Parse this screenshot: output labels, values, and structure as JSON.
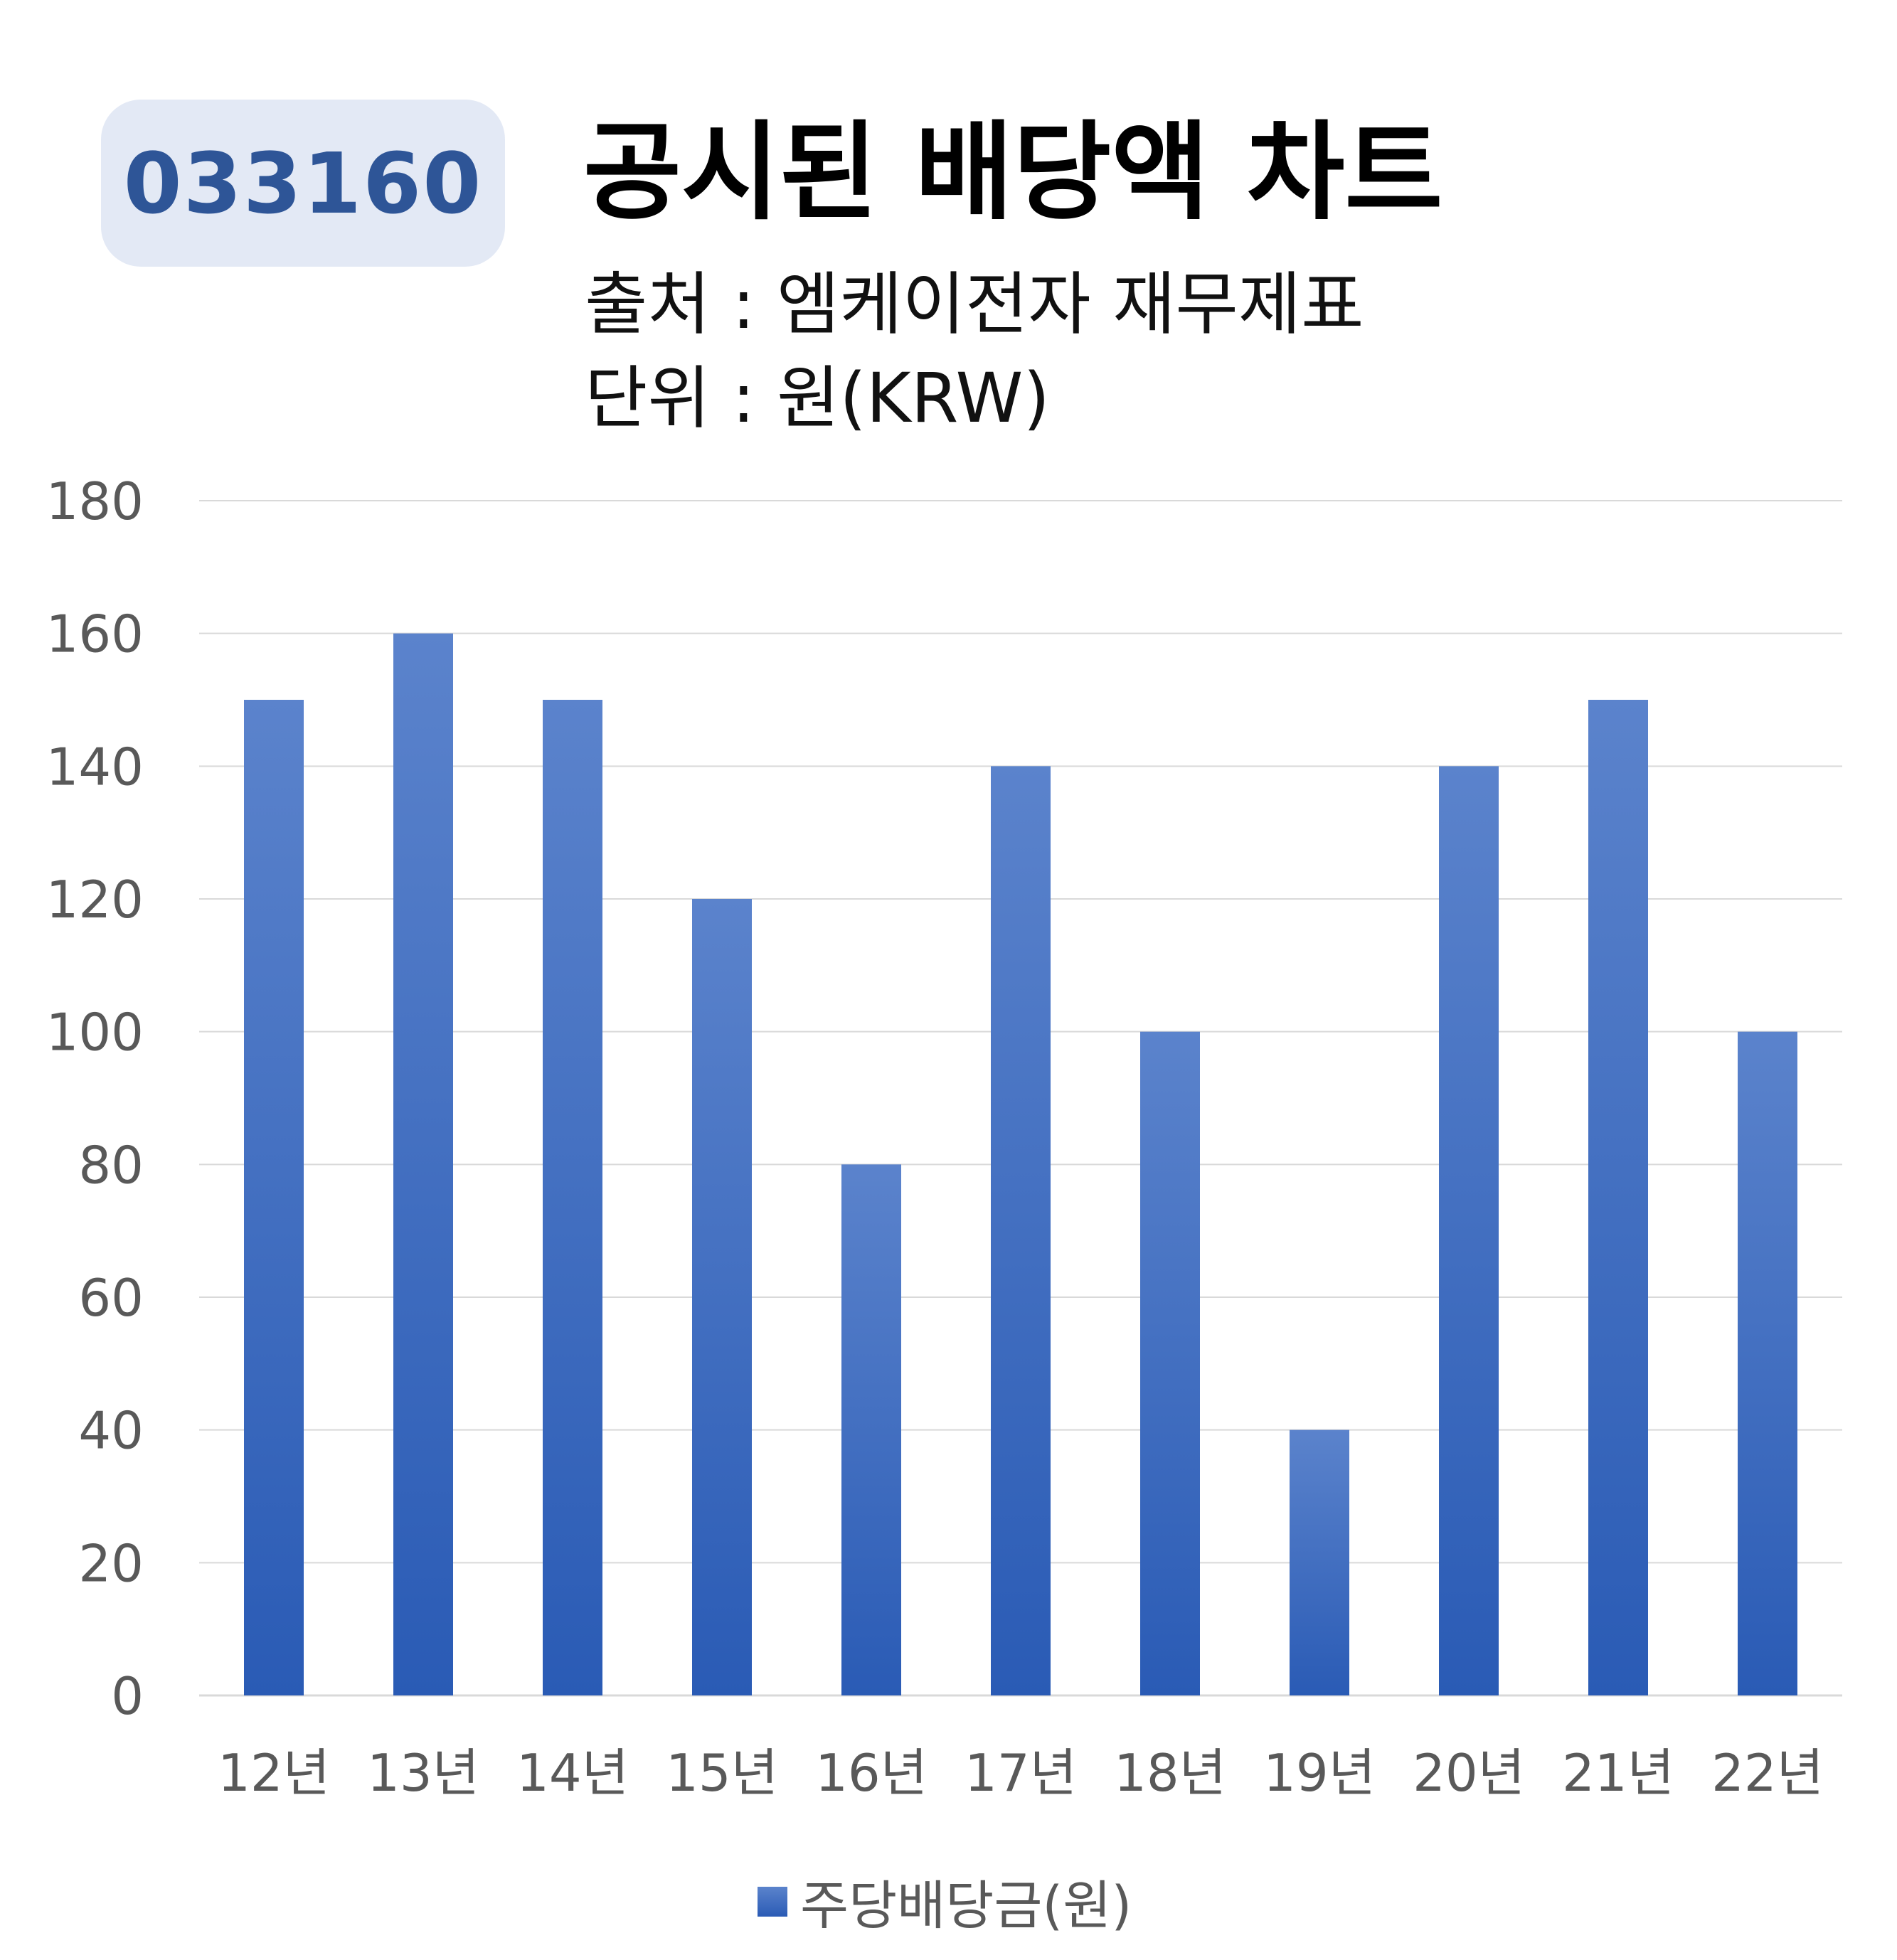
{
  "header": {
    "ticker": "033160",
    "title": "공시된 배당액 차트",
    "source": "출처 : 엠케이전자 재무제표",
    "unit": "단위 : 원(KRW)"
  },
  "colors": {
    "bar_top": "#5b83cc",
    "bar_bottom": "#2a5bb5",
    "gridline": "#d9d9d9",
    "tick_text": "#595959",
    "badge_bg": "#e3e9f5",
    "badge_text": "#2e5597"
  },
  "chart_data": {
    "type": "bar",
    "categories": [
      "12년",
      "13년",
      "14년",
      "15년",
      "16년",
      "17년",
      "18년",
      "19년",
      "20년",
      "21년",
      "22년"
    ],
    "series": [
      {
        "name": "주당배당금(원)",
        "values": [
          150,
          160,
          150,
          120,
          80,
          140,
          100,
          40,
          140,
          150,
          100
        ]
      }
    ],
    "ylim": [
      0,
      180
    ],
    "yticks": [
      0,
      20,
      40,
      60,
      80,
      100,
      120,
      140,
      160,
      180
    ],
    "grid": true,
    "legend_position": "bottom"
  }
}
